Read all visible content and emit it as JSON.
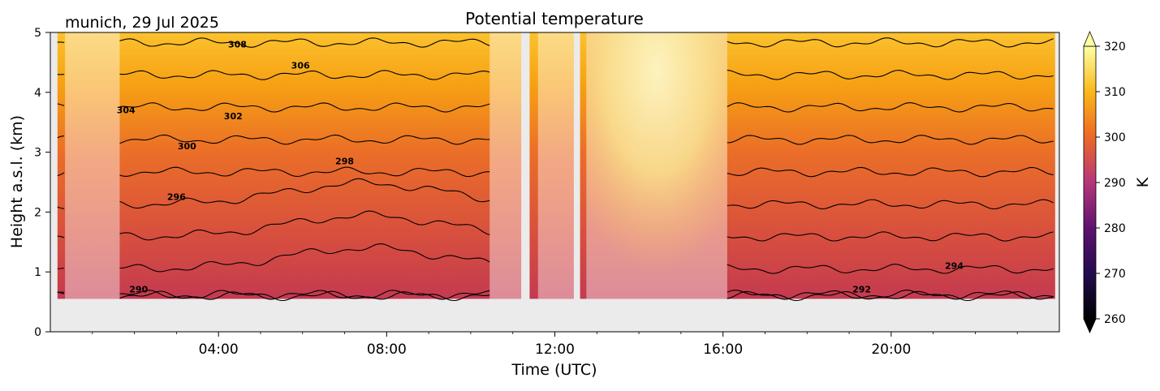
{
  "chart_data": {
    "type": "heatmap",
    "title": "Potential temperature",
    "location_label": "munich, 29 Jul 2025",
    "xlabel": "Time (UTC)",
    "ylabel": "Height a.s.l. (km)",
    "xlim": [
      0,
      24
    ],
    "ylim": [
      0,
      5
    ],
    "x_ticks": [
      4,
      8,
      12,
      16,
      20
    ],
    "x_tick_labels": [
      "04:00",
      "08:00",
      "12:00",
      "16:00",
      "20:00"
    ],
    "y_ticks": [
      0,
      1,
      2,
      3,
      4,
      5
    ],
    "y_tick_labels": [
      "0",
      "1",
      "2",
      "3",
      "4",
      "5"
    ],
    "data_bottom_km": 0.55,
    "colorbar": {
      "label": "K",
      "min": 260,
      "max": 320,
      "ticks": [
        260,
        270,
        280,
        290,
        300,
        310,
        320
      ],
      "extend": "both",
      "colormap": "inferno"
    },
    "contour_levels": [
      290,
      292,
      294,
      296,
      298,
      300,
      302,
      304,
      306,
      308
    ],
    "contour_labels": [
      {
        "text": "308",
        "x": 4.45,
        "y": 4.75
      },
      {
        "text": "306",
        "x": 5.95,
        "y": 4.4
      },
      {
        "text": "304",
        "x": 1.8,
        "y": 3.65
      },
      {
        "text": "302",
        "x": 4.35,
        "y": 3.55
      },
      {
        "text": "300",
        "x": 3.25,
        "y": 3.05
      },
      {
        "text": "298",
        "x": 7.0,
        "y": 2.8
      },
      {
        "text": "296",
        "x": 3.0,
        "y": 2.2
      },
      {
        "text": "294",
        "x": 21.5,
        "y": 1.05
      },
      {
        "text": "292",
        "x": 19.3,
        "y": 0.66
      },
      {
        "text": "290",
        "x": 2.1,
        "y": 0.66
      }
    ],
    "masked_periods": [
      [
        0.35,
        1.65
      ],
      [
        10.45,
        11.2
      ],
      [
        11.6,
        12.45
      ],
      [
        12.75,
        16.1
      ]
    ],
    "data_gaps": [
      [
        11.2,
        11.4
      ],
      [
        12.45,
        12.6
      ]
    ],
    "colors": {
      "low": "#c43a50",
      "mid": "#e8632f",
      "high": "#f6a415",
      "top": "#fbc530",
      "warm_plume": "#fbf1b8",
      "background": "#ebebeb"
    }
  }
}
